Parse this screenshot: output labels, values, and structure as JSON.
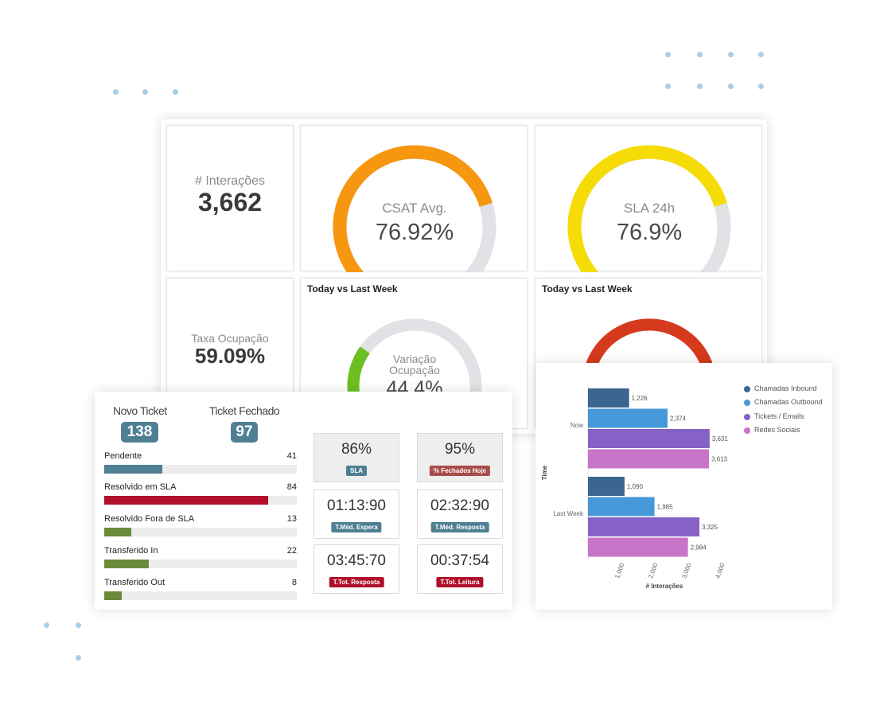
{
  "interactions": {
    "label": "# Interações",
    "value": "3,662"
  },
  "occupancy": {
    "label": "Taxa Ocupação",
    "value": "59.09%"
  },
  "csat": {
    "label": "CSAT Avg.",
    "value": "76.92%",
    "fraction": 0.77,
    "color": "#f7970f"
  },
  "sla24": {
    "label": "SLA 24h",
    "value": "76.9%",
    "fraction": 0.77,
    "color": "#f6dc06"
  },
  "variation": {
    "title": "Today vs Last Week",
    "label1": "Variação",
    "label2": "Ocupação",
    "value": "44.4%",
    "fraction": 0.3,
    "color": "#6cbf21"
  },
  "today_vs_last": {
    "title": "Today vs Last Week",
    "color": "#d63a1c"
  },
  "tickets": {
    "novo_label": "Novo Ticket",
    "novo_value": "138",
    "fechado_label": "Ticket Fechado",
    "fechado_value": "97",
    "bars": [
      {
        "name": "Pendente",
        "count": "41",
        "fraction": 0.3,
        "color": "#4e7f93"
      },
      {
        "name": "Resolvido em SLA",
        "count": "84",
        "fraction": 0.85,
        "color": "#b0102b"
      },
      {
        "name": "Resolvido Fora de SLA",
        "count": "13",
        "fraction": 0.14,
        "color": "#6a8a3a"
      },
      {
        "name": "Transferido In",
        "count": "22",
        "fraction": 0.23,
        "color": "#6a8a3a"
      },
      {
        "name": "Transferido Out",
        "count": "8",
        "fraction": 0.09,
        "color": "#6a8a3a"
      }
    ],
    "kpis": [
      {
        "value": "86%",
        "tag": "SLA",
        "tag_color": "#4e7f93",
        "bg": "#eeeeee"
      },
      {
        "value": "95%",
        "tag": "% Fechados Hoje",
        "tag_color": "#a84c4c",
        "bg": "#eeeeee"
      },
      {
        "value": "01:13:90",
        "tag": "T.Méd. Espera",
        "tag_color": "#4e7f93",
        "bg": "#ffffff"
      },
      {
        "value": "02:32:90",
        "tag": "T.Méd. Resposta",
        "tag_color": "#4e7f93",
        "bg": "#ffffff"
      },
      {
        "value": "03:45:70",
        "tag": "T.Tot. Resposta",
        "tag_color": "#b0102b",
        "bg": "#ffffff"
      },
      {
        "value": "00:37:54",
        "tag": "T.Tot. Leitura",
        "tag_color": "#b0102b",
        "bg": "#ffffff"
      }
    ]
  },
  "chart_data": {
    "type": "bar",
    "orientation": "horizontal",
    "categories": [
      "Now",
      "Last Week"
    ],
    "series": [
      {
        "name": "Chamadas Inbound",
        "values": [
          1226,
          1090
        ],
        "labels": [
          "1,226",
          "1,090"
        ],
        "color": "#3c6591"
      },
      {
        "name": "Chamadas Outbound",
        "values": [
          2374,
          1985
        ],
        "labels": [
          "2,374",
          "1,985"
        ],
        "color": "#4798d8"
      },
      {
        "name": "Tickets / Emails",
        "values": [
          3631,
          3325
        ],
        "labels": [
          "3,631",
          "3,325"
        ],
        "color": "#8662c7"
      },
      {
        "name": "Redes Sociais",
        "values": [
          3613,
          2984
        ],
        "labels": [
          "3,613",
          "2,984"
        ],
        "color": "#c774c9"
      }
    ],
    "xticks": [
      "1,000",
      "2,000",
      "3,000",
      "4,000"
    ],
    "xtick_values": [
      1000,
      2000,
      3000,
      4000
    ],
    "xlabel": "# Interações",
    "ylabel": "Time",
    "legend": "top-right"
  }
}
